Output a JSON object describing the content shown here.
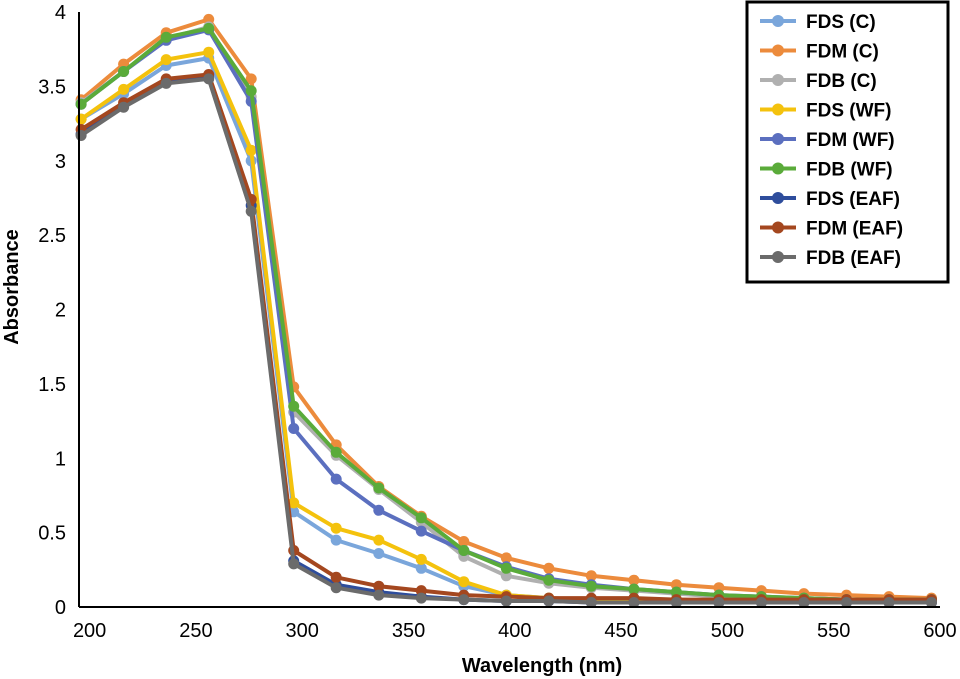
{
  "chart_data": {
    "type": "line",
    "title": "",
    "xlabel": "Wavelength (nm)",
    "ylabel": "Absorbance",
    "xlim": [
      195,
      600
    ],
    "ylim": [
      0,
      4
    ],
    "xticks": [
      "200",
      "250",
      "300",
      "350",
      "400",
      "450",
      "500",
      "550",
      "600"
    ],
    "yticks": [
      "0",
      "0.5",
      "1",
      "1.5",
      "2",
      "2.5",
      "3",
      "3.5",
      "4"
    ],
    "grid": false,
    "legend_position": "top-right",
    "x": [
      196,
      216,
      236,
      256,
      276,
      296,
      316,
      336,
      356,
      376,
      396,
      416,
      436,
      456,
      476,
      496,
      516,
      536,
      556,
      576,
      596
    ],
    "series": [
      {
        "name": "FDS (C)",
        "color": "#7aa6db",
        "values": [
          3.28,
          3.45,
          3.64,
          3.69,
          3.0,
          0.64,
          0.45,
          0.36,
          0.26,
          0.14,
          0.08,
          0.06,
          0.05,
          0.05,
          0.05,
          0.04,
          0.04,
          0.04,
          0.04,
          0.04,
          0.04
        ]
      },
      {
        "name": "FDM (C)",
        "color": "#ec8b3c",
        "values": [
          3.41,
          3.65,
          3.86,
          3.95,
          3.55,
          1.48,
          1.09,
          0.81,
          0.61,
          0.44,
          0.33,
          0.26,
          0.21,
          0.18,
          0.15,
          0.13,
          0.11,
          0.09,
          0.08,
          0.07,
          0.06
        ]
      },
      {
        "name": "FDB (C)",
        "color": "#b0b0b0",
        "values": [
          3.39,
          3.6,
          3.82,
          3.9,
          3.43,
          1.31,
          1.02,
          0.79,
          0.57,
          0.34,
          0.21,
          0.16,
          0.13,
          0.11,
          0.09,
          0.07,
          0.06,
          0.06,
          0.05,
          0.05,
          0.05
        ]
      },
      {
        "name": "FDS (WF)",
        "color": "#f4c20d",
        "values": [
          3.28,
          3.48,
          3.68,
          3.73,
          3.07,
          0.7,
          0.53,
          0.45,
          0.32,
          0.17,
          0.08,
          0.06,
          0.05,
          0.05,
          0.05,
          0.04,
          0.04,
          0.04,
          0.04,
          0.04,
          0.04
        ]
      },
      {
        "name": "FDM (WF)",
        "color": "#5b6fbf",
        "values": [
          3.38,
          3.6,
          3.81,
          3.88,
          3.4,
          1.2,
          0.86,
          0.65,
          0.51,
          0.38,
          0.27,
          0.19,
          0.15,
          0.12,
          0.1,
          0.08,
          0.07,
          0.06,
          0.05,
          0.05,
          0.05
        ]
      },
      {
        "name": "FDB (WF)",
        "color": "#5aab3a",
        "values": [
          3.38,
          3.6,
          3.83,
          3.89,
          3.47,
          1.35,
          1.04,
          0.8,
          0.6,
          0.38,
          0.26,
          0.18,
          0.14,
          0.12,
          0.1,
          0.08,
          0.07,
          0.06,
          0.05,
          0.05,
          0.05
        ]
      },
      {
        "name": "FDS (EAF)",
        "color": "#2e4d9c",
        "values": [
          3.18,
          3.37,
          3.53,
          3.56,
          2.7,
          0.31,
          0.15,
          0.1,
          0.07,
          0.05,
          0.04,
          0.04,
          0.03,
          0.03,
          0.03,
          0.03,
          0.03,
          0.03,
          0.03,
          0.03,
          0.03
        ]
      },
      {
        "name": "FDM (EAF)",
        "color": "#a4471f",
        "values": [
          3.21,
          3.39,
          3.55,
          3.58,
          2.74,
          0.38,
          0.2,
          0.14,
          0.11,
          0.08,
          0.07,
          0.06,
          0.06,
          0.06,
          0.05,
          0.05,
          0.05,
          0.05,
          0.05,
          0.05,
          0.05
        ]
      },
      {
        "name": "FDB (EAF)",
        "color": "#6b6b6b",
        "values": [
          3.17,
          3.36,
          3.52,
          3.55,
          2.66,
          0.29,
          0.13,
          0.08,
          0.06,
          0.05,
          0.04,
          0.04,
          0.03,
          0.03,
          0.03,
          0.03,
          0.03,
          0.03,
          0.03,
          0.03,
          0.03
        ]
      }
    ]
  }
}
